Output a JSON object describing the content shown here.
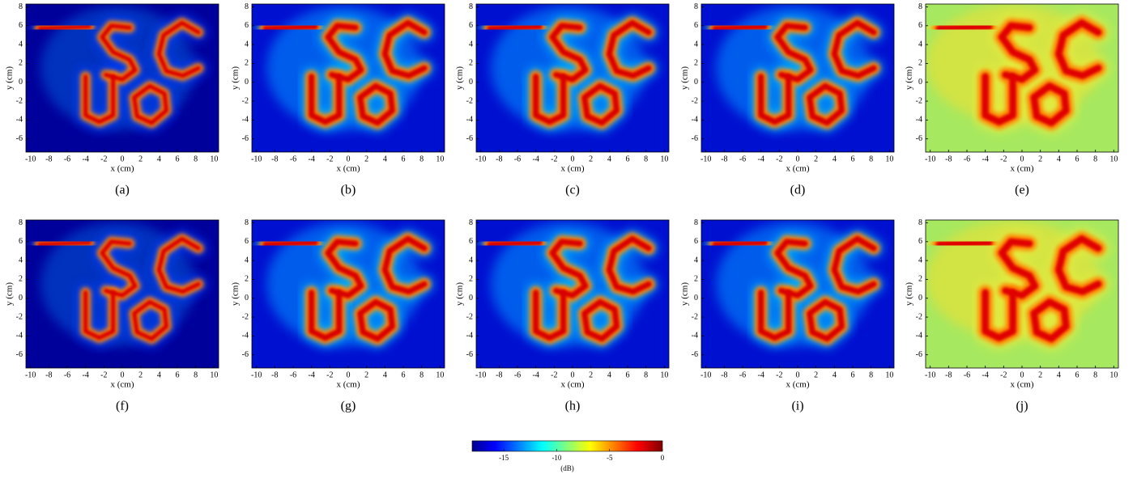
{
  "chart_data": [
    {
      "type": "image",
      "caption": "(a)",
      "xlabel": "x (cm)",
      "ylabel": "y (cm)",
      "xlim": [
        -10.5,
        10.5
      ],
      "ylim": [
        -7.4,
        8.3
      ],
      "xticks": [
        -10,
        -8,
        -6,
        -4,
        -2,
        0,
        2,
        4,
        6,
        8,
        10
      ],
      "yticks": [
        -6,
        -4,
        -2,
        0,
        2,
        4,
        6,
        8
      ]
    },
    {
      "type": "image",
      "caption": "(b)",
      "xlabel": "x (cm)",
      "ylabel": "y (cm)",
      "xlim": [
        -10.5,
        10.5
      ],
      "ylim": [
        -7.4,
        8.3
      ],
      "xticks": [
        -10,
        -8,
        -6,
        -4,
        -2,
        0,
        2,
        4,
        6,
        8,
        10
      ],
      "yticks": [
        -6,
        -4,
        -2,
        0,
        2,
        4,
        6,
        8
      ]
    },
    {
      "type": "image",
      "caption": "(c)",
      "xlabel": "x (cm)",
      "ylabel": "y (cm)",
      "xlim": [
        -10.5,
        10.5
      ],
      "ylim": [
        -7.4,
        8.3
      ],
      "xticks": [
        -10,
        -8,
        -6,
        -4,
        -2,
        0,
        2,
        4,
        6,
        8,
        10
      ],
      "yticks": [
        -6,
        -4,
        -2,
        0,
        2,
        4,
        6,
        8
      ]
    },
    {
      "type": "image",
      "caption": "(d)",
      "xlabel": "x (cm)",
      "ylabel": "y (cm)",
      "xlim": [
        -10.5,
        10.5
      ],
      "ylim": [
        -7.4,
        8.3
      ],
      "xticks": [
        -10,
        -8,
        -6,
        -4,
        -2,
        0,
        2,
        4,
        6,
        8,
        10
      ],
      "yticks": [
        -6,
        -4,
        -2,
        0,
        2,
        4,
        6,
        8
      ]
    },
    {
      "type": "image",
      "caption": "(e)",
      "xlabel": "x (cm)",
      "ylabel": "y (cm)",
      "xlim": [
        -10.5,
        10.5
      ],
      "ylim": [
        -7.4,
        8.3
      ],
      "xticks": [
        -10,
        -8,
        -6,
        -4,
        -2,
        0,
        2,
        4,
        6,
        8,
        10
      ],
      "yticks": [
        -6,
        -4,
        -2,
        0,
        2,
        4,
        6,
        8
      ]
    },
    {
      "type": "image",
      "caption": "(f)",
      "xlabel": "x (cm)",
      "ylabel": "y (cm)",
      "xlim": [
        -10.5,
        10.5
      ],
      "ylim": [
        -7.4,
        8.3
      ],
      "xticks": [
        -10,
        -8,
        -6,
        -4,
        -2,
        0,
        2,
        4,
        6,
        8,
        10
      ],
      "yticks": [
        -6,
        -4,
        -2,
        0,
        2,
        4,
        6,
        8
      ]
    },
    {
      "type": "image",
      "caption": "(g)",
      "xlabel": "x (cm)",
      "ylabel": "y (cm)",
      "xlim": [
        -10.5,
        10.5
      ],
      "ylim": [
        -7.4,
        8.3
      ],
      "xticks": [
        -10,
        -8,
        -6,
        -4,
        -2,
        0,
        2,
        4,
        6,
        8,
        10
      ],
      "yticks": [
        -6,
        -4,
        -2,
        0,
        2,
        4,
        6,
        8
      ]
    },
    {
      "type": "image",
      "caption": "(h)",
      "xlabel": "x (cm)",
      "ylabel": "y (cm)",
      "xlim": [
        -10.5,
        10.5
      ],
      "ylim": [
        -7.4,
        8.3
      ],
      "xticks": [
        -10,
        -8,
        -6,
        -4,
        -2,
        0,
        2,
        4,
        6,
        8,
        10
      ],
      "yticks": [
        -6,
        -4,
        -2,
        0,
        2,
        4,
        6,
        8
      ]
    },
    {
      "type": "image",
      "caption": "(i)",
      "xlabel": "x (cm)",
      "ylabel": "y (cm)",
      "xlim": [
        -10.5,
        10.5
      ],
      "ylim": [
        -7.4,
        8.3
      ],
      "xticks": [
        -10,
        -8,
        -6,
        -4,
        -2,
        0,
        2,
        4,
        6,
        8,
        10
      ],
      "yticks": [
        -6,
        -4,
        -2,
        0,
        2,
        4,
        6,
        8
      ]
    },
    {
      "type": "image",
      "caption": "(j)",
      "xlabel": "x (cm)",
      "ylabel": "y (cm)",
      "xlim": [
        -10.5,
        10.5
      ],
      "ylim": [
        -7.4,
        8.3
      ],
      "xticks": [
        -10,
        -8,
        -6,
        -4,
        -2,
        0,
        2,
        4,
        6,
        8,
        10
      ],
      "yticks": [
        -6,
        -4,
        -2,
        0,
        2,
        4,
        6,
        8
      ]
    },
    {
      "type": "colorbar",
      "label": "(dB)",
      "xlim": [
        -18,
        0
      ],
      "xticks": [
        -15,
        -10,
        -5,
        0
      ]
    }
  ]
}
